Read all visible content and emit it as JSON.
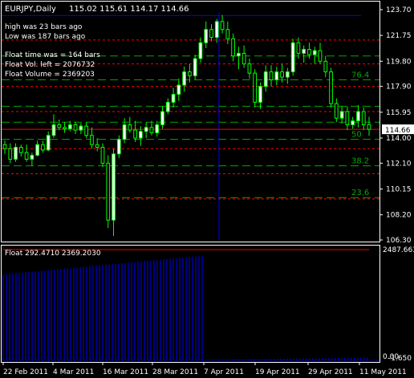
{
  "header": {
    "symbol": "EURJPY,Daily",
    "ohlc": "115.02 115.61 114.17 114.66"
  },
  "info": {
    "high_was": "high was   23  bars ago",
    "low_was": "Low was   187 bars ago",
    "float_time": "Float time was =       164 bars",
    "float_vol_left": "Float Vol. left   =     2076732",
    "float_volume": "Float Volume   =      2369203"
  },
  "indicator": {
    "label": "Float 292.4710 2369.2030",
    "scale_top": "2487.663",
    "scale_bottom": "0.00",
    "scale_bottom2": "-1.650"
  },
  "price_axis": {
    "labels": [
      "123.70",
      "121.75",
      "119.80",
      "117.90",
      "115.95",
      "114.00",
      "112.10",
      "110.15",
      "108.20",
      "106.30"
    ],
    "current": "114.66"
  },
  "fib_levels": [
    "76.4",
    "50",
    "38.2",
    "23.6"
  ],
  "time_axis": [
    "22 Feb 2011",
    "4 Mar 2011",
    "16 Mar 2011",
    "28 Mar 2011",
    "7 Apr 2011",
    "19 Apr 2011",
    "29 Apr 2011",
    "11 May 2011"
  ],
  "colors": {
    "background": "#000000",
    "bull": "#ffffff",
    "bear": "#000000",
    "wick": "#00ff00",
    "current_price_line": "#ff0000",
    "channel_line": "#ff0000",
    "fib_line": "#00aa00",
    "vertical_line": "#0000ff",
    "volume_bar": "#0000ff",
    "text": "#ffffff"
  },
  "chart_data": {
    "type": "candlestick",
    "title": "EURJPY,Daily",
    "ylim": [
      106.3,
      123.7
    ],
    "current_price": 114.66,
    "high_line": 123.25,
    "fib_levels": [
      {
        "label": "76.4",
        "value": 118.4
      },
      {
        "label": "50",
        "value": 113.9
      },
      {
        "label": "38.2",
        "value": 111.9
      },
      {
        "label": "23.6",
        "value": 109.5
      }
    ],
    "red_dashed_levels": [
      121.4,
      119.6,
      117.9,
      116.0,
      113.2,
      111.3,
      109.4
    ],
    "green_dashed_levels": [
      120.2,
      116.4,
      115.2
    ],
    "candles": [
      [
        113.5,
        113.8,
        112.8,
        113.2
      ],
      [
        113.2,
        113.6,
        112.1,
        112.4
      ],
      [
        112.4,
        113.6,
        112.2,
        113.3
      ],
      [
        113.3,
        113.5,
        112.6,
        112.9
      ],
      [
        112.9,
        113.5,
        112.2,
        112.4
      ],
      [
        112.4,
        112.9,
        111.9,
        112.7
      ],
      [
        112.7,
        113.8,
        112.6,
        113.5
      ],
      [
        113.5,
        113.8,
        112.9,
        113.1
      ],
      [
        113.1,
        114.5,
        113.0,
        114.2
      ],
      [
        114.2,
        115.8,
        114.0,
        115.0
      ],
      [
        115.0,
        115.4,
        114.6,
        114.8
      ],
      [
        114.8,
        115.2,
        114.4,
        114.7
      ],
      [
        114.7,
        115.3,
        114.5,
        115.0
      ],
      [
        115.0,
        115.2,
        114.3,
        114.6
      ],
      [
        114.6,
        115.1,
        114.3,
        114.9
      ],
      [
        114.9,
        115.2,
        114.0,
        114.2
      ],
      [
        114.2,
        114.8,
        113.2,
        113.5
      ],
      [
        113.5,
        114.0,
        113.0,
        113.3
      ],
      [
        113.3,
        113.6,
        111.8,
        112.1
      ],
      [
        112.1,
        112.7,
        107.2,
        107.8
      ],
      [
        107.8,
        113.2,
        106.6,
        112.8
      ],
      [
        112.8,
        114.2,
        112.5,
        113.9
      ],
      [
        113.9,
        115.5,
        113.6,
        115.0
      ],
      [
        115.0,
        115.6,
        114.4,
        114.6
      ],
      [
        114.6,
        115.3,
        113.7,
        114.0
      ],
      [
        114.0,
        114.9,
        113.4,
        114.5
      ],
      [
        114.5,
        115.2,
        114.0,
        114.8
      ],
      [
        114.8,
        115.3,
        114.2,
        114.4
      ],
      [
        114.4,
        115.3,
        114.1,
        115.0
      ],
      [
        115.0,
        116.4,
        114.7,
        116.0
      ],
      [
        116.0,
        117.0,
        115.8,
        116.7
      ],
      [
        116.7,
        117.8,
        116.3,
        117.3
      ],
      [
        117.3,
        118.5,
        116.8,
        118.0
      ],
      [
        118.0,
        119.4,
        117.5,
        119.0
      ],
      [
        119.0,
        119.6,
        118.2,
        118.7
      ],
      [
        118.7,
        120.3,
        118.4,
        120.0
      ],
      [
        120.0,
        121.6,
        119.7,
        121.2
      ],
      [
        121.2,
        122.8,
        120.8,
        122.2
      ],
      [
        122.2,
        122.6,
        121.3,
        121.6
      ],
      [
        121.6,
        123.0,
        121.2,
        122.8
      ],
      [
        122.8,
        123.3,
        121.9,
        122.2
      ],
      [
        122.2,
        122.8,
        121.1,
        121.5
      ],
      [
        121.5,
        121.9,
        119.8,
        120.2
      ],
      [
        120.2,
        120.9,
        119.2,
        120.4
      ],
      [
        120.4,
        121.0,
        119.3,
        119.6
      ],
      [
        119.6,
        120.0,
        118.5,
        118.9
      ],
      [
        118.9,
        119.2,
        116.3,
        116.7
      ],
      [
        116.7,
        118.2,
        116.2,
        117.9
      ],
      [
        117.9,
        119.5,
        117.5,
        119.0
      ],
      [
        119.0,
        119.5,
        117.9,
        118.4
      ],
      [
        118.4,
        119.4,
        118.0,
        119.0
      ],
      [
        119.0,
        119.6,
        118.2,
        118.6
      ],
      [
        118.6,
        119.3,
        118.1,
        119.0
      ],
      [
        119.0,
        121.5,
        118.7,
        121.2
      ],
      [
        121.2,
        121.6,
        120.0,
        120.4
      ],
      [
        120.4,
        121.0,
        119.7,
        120.7
      ],
      [
        120.7,
        121.2,
        120.0,
        120.3
      ],
      [
        120.3,
        120.9,
        119.6,
        120.6
      ],
      [
        120.6,
        121.2,
        119.6,
        119.8
      ],
      [
        119.8,
        120.2,
        118.6,
        119.0
      ],
      [
        119.0,
        119.3,
        116.3,
        116.6
      ],
      [
        116.6,
        117.0,
        115.2,
        115.5
      ],
      [
        115.5,
        116.4,
        115.1,
        116.0
      ],
      [
        116.0,
        116.4,
        114.6,
        115.0
      ],
      [
        115.0,
        115.6,
        114.7,
        115.3
      ],
      [
        115.3,
        116.5,
        114.8,
        116.0
      ],
      [
        116.0,
        116.3,
        114.6,
        115.0
      ],
      [
        115.02,
        115.61,
        114.17,
        114.66
      ]
    ],
    "volume": {
      "ylim": [
        -1.65,
        2487.663
      ],
      "float_value": 2369.2,
      "float_start_index": 0,
      "float_end_index": 36
    }
  }
}
